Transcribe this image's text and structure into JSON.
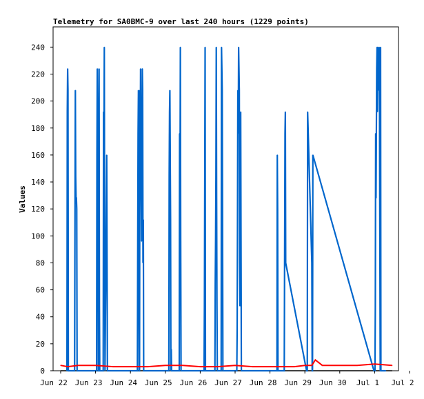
{
  "chart_data": {
    "type": "line",
    "title": "Telemetry for SA0BMC-9 over last 240 hours (1229 points)",
    "xlabel": "",
    "ylabel": "Values",
    "ylim": [
      0,
      255
    ],
    "yticks": [
      0,
      20,
      40,
      60,
      80,
      100,
      120,
      140,
      160,
      180,
      200,
      220,
      240
    ],
    "xlim": [
      0,
      10
    ],
    "xticks": [
      {
        "pos": 0,
        "label": "Jun 22"
      },
      {
        "pos": 1,
        "label": "Jun 23"
      },
      {
        "pos": 2,
        "label": "Jun 24"
      },
      {
        "pos": 3,
        "label": "Jun 25"
      },
      {
        "pos": 4,
        "label": "Jun 26"
      },
      {
        "pos": 5,
        "label": "Jun 27"
      },
      {
        "pos": 6,
        "label": "Jun 28"
      },
      {
        "pos": 7,
        "label": "Jun 29"
      },
      {
        "pos": 8,
        "label": "Jun 30"
      },
      {
        "pos": 9,
        "label": "Jul 1"
      },
      {
        "pos": 10,
        "label": "Jul 2"
      }
    ],
    "grid": false,
    "legend": "none",
    "series": [
      {
        "color": "#0066cc",
        "x": [
          0.18,
          0.19,
          0.2,
          0.21,
          0.22,
          0.23,
          0.4,
          0.41,
          0.42,
          0.43,
          0.44,
          0.45,
          0.46,
          0.47,
          0.48,
          1.03,
          1.04,
          1.05,
          1.06,
          1.07,
          1.08,
          1.09,
          1.1,
          1.11,
          1.12,
          1.13,
          1.22,
          1.23,
          1.24,
          1.25,
          1.26,
          1.27,
          1.32,
          1.33,
          1.34,
          1.35,
          1.36,
          1.37,
          1.38,
          1.39,
          1.4,
          1.41,
          1.42,
          1.43,
          1.44,
          1.45,
          1.46,
          1.47,
          1.48,
          1.49,
          2.2,
          2.21,
          2.22,
          2.23,
          2.24,
          2.25,
          2.26,
          2.27,
          2.28,
          2.29,
          2.3,
          2.31,
          2.32,
          2.33,
          2.34,
          2.35,
          2.36,
          2.37,
          2.38,
          2.39,
          2.4,
          2.41,
          2.42,
          2.43,
          2.44,
          2.45,
          2.46,
          2.47,
          2.48,
          2.49,
          2.5,
          2.51,
          2.52,
          2.53,
          2.54,
          2.55,
          3.1,
          3.11,
          3.12,
          3.13,
          3.14,
          3.15,
          3.16,
          3.17,
          3.18,
          3.19,
          3.2,
          3.21,
          3.22,
          3.23,
          3.4,
          3.41,
          3.42,
          3.43,
          3.44,
          3.45,
          4.1,
          4.11,
          4.12,
          4.13,
          4.14,
          4.15,
          4.4,
          4.41,
          4.42,
          4.43,
          4.44,
          4.45,
          4.46,
          4.47,
          4.48,
          4.49,
          4.5,
          4.51,
          4.6,
          4.61,
          4.62,
          4.63,
          4.64,
          4.65,
          4.66,
          5.05,
          5.06,
          5.07,
          5.08,
          5.09,
          5.1,
          5.11,
          5.12,
          5.13,
          5.14,
          5.15,
          5.16,
          5.17,
          5.18,
          5.19,
          5.2,
          5.21,
          5.22,
          5.23,
          5.24,
          5.25,
          5.26,
          5.27,
          5.28,
          6.2,
          6.21,
          6.22,
          6.23,
          6.24,
          6.25,
          6.4,
          6.41,
          6.42,
          6.43,
          6.44,
          6.45,
          7.05,
          7.06,
          7.07,
          7.08,
          7.2,
          7.21,
          7.22,
          7.23,
          8.98,
          8.99,
          9.0,
          9.01,
          9.02,
          9.03,
          9.04,
          9.05,
          9.06,
          9.07,
          9.08,
          9.09,
          9.1,
          9.11,
          9.12,
          9.13,
          9.14,
          9.15,
          9.16,
          9.17,
          9.18,
          9.19,
          9.2,
          9.21,
          9.22,
          9.23,
          9.24,
          9.25,
          9.26,
          9.27,
          9.28,
          9.29,
          9.3,
          9.31,
          9.32
        ],
        "values": [
          0,
          192,
          224,
          208,
          0,
          0,
          0,
          96,
          208,
          144,
          128,
          128,
          120,
          0,
          0,
          0,
          160,
          224,
          192,
          144,
          0,
          0,
          224,
          48,
          0,
          0,
          0,
          192,
          160,
          240,
          80,
          0,
          160,
          80,
          0,
          0,
          0,
          0,
          0,
          0,
          0,
          0,
          0,
          0,
          0,
          0,
          0,
          0,
          0,
          0,
          0,
          96,
          176,
          208,
          96,
          0,
          0,
          208,
          160,
          224,
          144,
          128,
          96,
          160,
          224,
          208,
          80,
          112,
          0,
          0,
          0,
          0,
          0,
          0,
          0,
          0,
          0,
          0,
          0,
          0,
          0,
          0,
          0,
          0,
          0,
          0,
          0,
          144,
          192,
          208,
          160,
          112,
          0,
          16,
          0,
          0,
          0,
          0,
          0,
          0,
          0,
          176,
          128,
          240,
          96,
          0,
          0,
          0,
          48,
          144,
          240,
          0,
          0,
          0,
          0,
          64,
          96,
          144,
          240,
          128,
          48,
          0,
          0,
          0,
          0,
          240,
          224,
          208,
          112,
          0,
          0,
          0,
          32,
          112,
          208,
          176,
          240,
          224,
          208,
          80,
          48,
          112,
          192,
          96,
          0,
          0,
          0,
          0,
          0,
          0,
          0,
          0,
          0,
          0,
          0,
          0,
          160,
          120,
          0,
          0,
          0,
          0,
          0,
          96,
          176,
          192,
          80,
          0,
          0,
          0,
          192,
          80,
          0,
          0,
          160,
          0,
          0,
          0,
          0,
          48,
          176,
          128,
          176,
          224,
          240,
          192,
          240,
          224,
          208,
          224,
          240,
          192,
          96,
          0,
          240,
          0,
          0,
          0,
          0,
          0,
          0,
          0,
          0,
          0,
          0,
          0,
          0,
          0,
          0,
          0
        ]
      },
      {
        "color": "#ff0000",
        "x": [
          0.0,
          0.2,
          0.5,
          1.0,
          1.5,
          2.0,
          2.5,
          3.0,
          3.5,
          4.0,
          4.5,
          5.0,
          5.5,
          6.0,
          6.3,
          6.5,
          6.7,
          7.0,
          7.2,
          7.3,
          7.5,
          8.0,
          8.5,
          9.0,
          9.5
        ],
        "values": [
          4,
          3,
          4,
          4,
          3,
          3,
          3,
          4,
          4,
          3,
          3,
          4,
          3,
          3,
          3,
          3,
          3,
          4,
          4,
          8,
          4,
          4,
          4,
          5,
          4
        ]
      },
      {
        "color": "#000000",
        "x": [
          0,
          9.5
        ],
        "values": [
          0,
          0
        ]
      }
    ]
  }
}
